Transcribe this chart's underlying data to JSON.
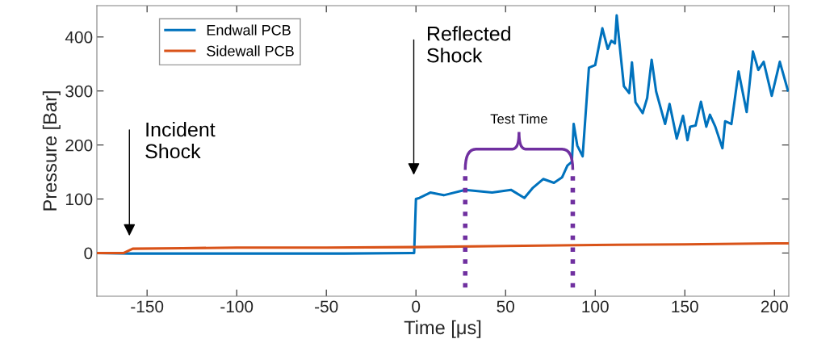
{
  "chart_data": {
    "type": "line",
    "xlabel": "Time [μs]",
    "ylabel": "Pressure [Bar]",
    "xlim": [
      -178,
      208
    ],
    "xticks": [
      -150,
      -100,
      -50,
      0,
      50,
      100,
      150,
      200
    ],
    "ylim": [
      -80,
      458
    ],
    "yticks": [
      0,
      100,
      200,
      300,
      400
    ],
    "grid": false,
    "legend": "top left",
    "marker": "none",
    "line_style": "solid",
    "series": [
      {
        "name": "Endwall PCB",
        "color": "#0072bd",
        "x": [
          -178,
          -160,
          -120,
          -80,
          -40,
          -1,
          0,
          2,
          8,
          15.5,
          27.5,
          42.5,
          53,
          60.5,
          65,
          71,
          77,
          81.5,
          84.5,
          87,
          88,
          90,
          93,
          96.5,
          100,
          104,
          107,
          109,
          111,
          112,
          114,
          116,
          119,
          120.5,
          122.5,
          126.5,
          129,
          131.5,
          134,
          139,
          141.5,
          145.5,
          149,
          151.5,
          153,
          156,
          159,
          162,
          164,
          167,
          171,
          172.5,
          176,
          180,
          184.5,
          188,
          191,
          194,
          198.5,
          203,
          207.5
        ],
        "values": [
          0,
          -1,
          -1,
          -1,
          -1,
          0,
          100,
          102,
          112,
          107,
          117,
          112,
          117,
          102,
          120,
          137,
          130,
          140,
          162,
          169,
          239,
          199,
          179,
          343,
          348,
          416,
          378,
          393,
          388,
          440,
          373,
          309,
          296,
          353,
          279,
          259,
          287,
          358,
          299,
          239,
          276,
          212,
          254,
          209,
          234,
          236,
          280,
          234,
          256,
          234,
          194,
          244,
          239,
          336,
          261,
          373,
          339,
          354,
          291,
          354,
          301
        ]
      },
      {
        "name": "Sidewall PCB",
        "color": "#d95319",
        "x": [
          -178,
          -163,
          -158,
          -130,
          -100,
          -50,
          0,
          50,
          100,
          150,
          200,
          207.5
        ],
        "values": [
          0,
          0,
          8,
          9,
          10,
          10,
          11,
          13,
          15,
          16,
          18,
          18
        ]
      }
    ],
    "annotations": [
      "Incident\nShock",
      "Reflected\nShock",
      {
        "text": "Test Time",
        "x": 87.5,
        "y": 154
      }
    ],
    "ref_lines": [
      {
        "axis": "x",
        "value": 27.5,
        "color": "#7030a0",
        "line_style": "dotted"
      },
      {
        "axis": "x",
        "value": 87.5,
        "color": "#7030a0",
        "line_style": "dotted"
      }
    ]
  }
}
